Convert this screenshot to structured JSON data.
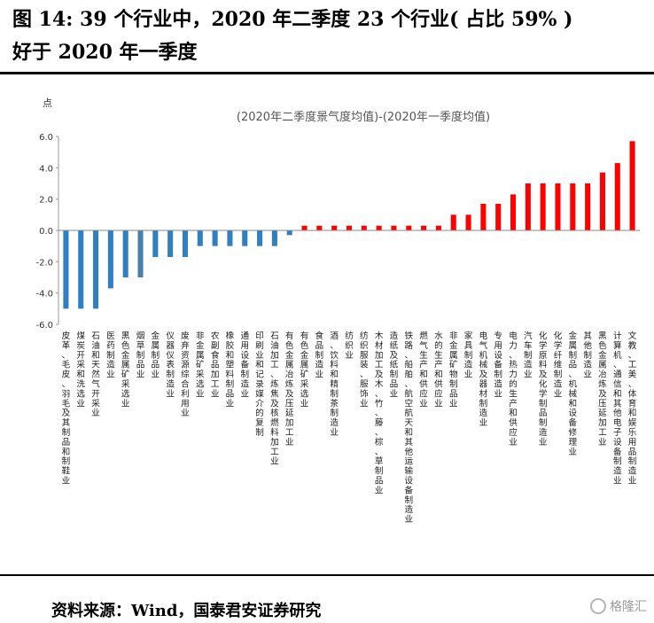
{
  "figure": {
    "title_line1": "图 14: 39 个行业中，2020 年二季度 23 个行业( 占比 59% )",
    "title_line2": "好于 2020 年一季度",
    "source": "资料来源：Wind，国泰君安证券研究",
    "watermark": "格隆汇"
  },
  "colors": {
    "negative": "#2f7fc1",
    "negative_alt": "#4a7fa8",
    "positive": "#ff0000"
  },
  "chart_data": {
    "type": "bar",
    "title": "(2020年二季度景气度均值)-(2020年一季度均值)",
    "ylabel": "点",
    "xlabel": "",
    "ylim": [
      -6.0,
      6.0
    ],
    "yticks": [
      "6.0",
      "4.0",
      "2.0",
      "0.0",
      "-2.0",
      "-4.0",
      "-6.0"
    ],
    "categories": [
      "皮革、毛皮、羽毛及其制品和制鞋业",
      "煤炭开采和洗选业",
      "石油和天然气开采业",
      "医药制造业",
      "黑色金属矿采选业",
      "烟草制品业",
      "金属制品业",
      "仪器仪表制造业",
      "废弃资源综合利用业",
      "非金属矿采选业",
      "农副食品加工业",
      "橡胶和塑料制品业",
      "通用设备制造业",
      "印刷业和记录媒介的复制",
      "石油加工、炼焦及核燃料加工业",
      "有色金属冶炼及压延加工业",
      "有色金属矿采选业",
      "食品制造业",
      "酒、饮料和精制茶制造业",
      "纺织业",
      "纺织服装、服饰业",
      "木材加工及木、竹、藤、棕、草制品业",
      "造纸及纸制品业",
      "铁路、船舶、航空航天和其他运输设备制造业",
      "燃气生产和供应业",
      "水的生产和供应业",
      "非金属矿物制品业",
      "家具制造业",
      "电气机械及器材制造业",
      "专用设备制造业",
      "电力、热力的生产和供应业",
      "汽车制造业",
      "化学原料及化学制品制造业",
      "化学纤维制造业",
      "金属制品、机械和设备修理业",
      "其他制造业",
      "黑色金属冶炼及压延加工业",
      "计算机、通信和其他电子设备制造业",
      "文教、工美、体育和娱乐用品制造业"
    ],
    "values": [
      -5.0,
      -5.0,
      -5.0,
      -3.7,
      -3.0,
      -3.0,
      -1.7,
      -1.7,
      -1.7,
      -1.0,
      -1.0,
      -1.0,
      -1.0,
      -1.0,
      -1.0,
      -0.3,
      0.3,
      0.3,
      0.3,
      0.3,
      0.3,
      0.3,
      0.3,
      0.3,
      0.3,
      0.3,
      1.0,
      1.0,
      1.7,
      1.7,
      2.3,
      3.0,
      3.0,
      3.0,
      3.0,
      3.0,
      3.7,
      4.3,
      5.7
    ]
  }
}
